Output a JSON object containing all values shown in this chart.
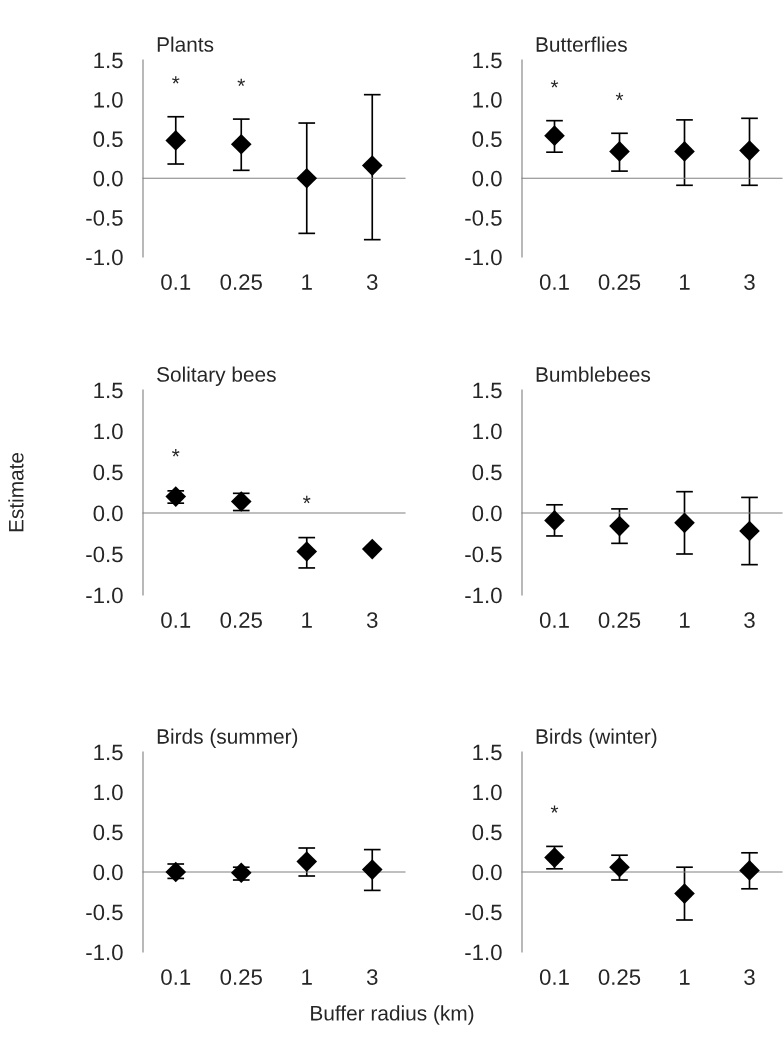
{
  "chart_data": [
    {
      "type": "scatter",
      "title": "Plants",
      "categories": [
        "0.1",
        "0.25",
        "1",
        "3"
      ],
      "values": [
        0.48,
        0.43,
        0.0,
        0.16
      ],
      "errors": [
        [
          0.18,
          0.78
        ],
        [
          0.1,
          0.75
        ],
        [
          -0.7,
          0.7
        ],
        [
          -0.78,
          1.06
        ]
      ],
      "color": "#000000",
      "marker": "diamond",
      "ylim": [
        -1.0,
        1.5
      ],
      "yticks": [
        {
          "value": 1.5,
          "label": "1.5"
        },
        {
          "value": 1.0,
          "label": "1.0"
        },
        {
          "value": 0.5,
          "label": "0.5"
        },
        {
          "value": 0.0,
          "label": "0.0"
        },
        {
          "value": -0.5,
          "label": "-0.5"
        },
        {
          "value": -1.0,
          "label": "-1.0"
        }
      ],
      "value_labels": [
        "*",
        "*",
        null,
        null
      ]
    },
    {
      "type": "scatter",
      "title": "Butterflies",
      "categories": [
        "0.1",
        "0.25",
        "1",
        "3"
      ],
      "values": [
        0.54,
        0.34,
        0.34,
        0.35
      ],
      "errors": [
        [
          0.33,
          0.73
        ],
        [
          0.09,
          0.57
        ],
        [
          -0.09,
          0.74
        ],
        [
          -0.09,
          0.76
        ]
      ],
      "color": "#000000",
      "marker": "diamond",
      "ylim": [
        -1.0,
        1.5
      ],
      "yticks": [
        {
          "value": 1.5,
          "label": "1.5"
        },
        {
          "value": 1.0,
          "label": "1.0"
        },
        {
          "value": 0.5,
          "label": "0.5"
        },
        {
          "value": 0.0,
          "label": "0.0"
        },
        {
          "value": -0.5,
          "label": "-0.5"
        },
        {
          "value": -1.0,
          "label": "-1.0"
        }
      ],
      "value_labels": [
        "*",
        "*",
        null,
        null
      ]
    },
    {
      "type": "scatter",
      "title": "Solitary bees",
      "ylabel": "Estimate",
      "categories": [
        "0.1",
        "0.25",
        "1",
        "3"
      ],
      "values": [
        0.2,
        0.14,
        -0.47,
        -0.44
      ],
      "errors": [
        [
          0.12,
          0.27
        ],
        [
          0.03,
          0.24
        ],
        [
          -0.67,
          -0.3
        ],
        null
      ],
      "color": "#000000",
      "marker": "diamond",
      "ylim": [
        -1.0,
        1.5
      ],
      "yticks": [
        {
          "value": 1.5,
          "label": "1.5"
        },
        {
          "value": 1.0,
          "label": "1.0"
        },
        {
          "value": 0.5,
          "label": "0.5"
        },
        {
          "value": 0.0,
          "label": "0.0"
        },
        {
          "value": -0.5,
          "label": "-0.5"
        },
        {
          "value": -1.0,
          "label": "-1.0"
        }
      ],
      "value_labels": [
        "*",
        null,
        "*",
        null
      ]
    },
    {
      "type": "scatter",
      "title": "Bumblebees",
      "categories": [
        "0.1",
        "0.25",
        "1",
        "3"
      ],
      "values": [
        -0.09,
        -0.16,
        -0.12,
        -0.22
      ],
      "errors": [
        [
          -0.28,
          0.1
        ],
        [
          -0.37,
          0.05
        ],
        [
          -0.5,
          0.26
        ],
        [
          -0.63,
          0.19
        ]
      ],
      "color": "#000000",
      "marker": "diamond",
      "ylim": [
        -1.0,
        1.5
      ],
      "yticks": [
        {
          "value": 1.5,
          "label": "1.5"
        },
        {
          "value": 1.0,
          "label": "1.0"
        },
        {
          "value": 0.5,
          "label": "0.5"
        },
        {
          "value": 0.0,
          "label": "0.0"
        },
        {
          "value": -0.5,
          "label": "-0.5"
        },
        {
          "value": -1.0,
          "label": "-1.0"
        }
      ]
    },
    {
      "type": "scatter",
      "title": "Birds (summer)",
      "xlabel": "Buffer radius (km)",
      "categories": [
        "0.1",
        "0.25",
        "1",
        "3"
      ],
      "values": [
        0.0,
        -0.01,
        0.13,
        0.03
      ],
      "errors": [
        [
          -0.08,
          0.1
        ],
        [
          -0.1,
          0.06
        ],
        [
          -0.05,
          0.3
        ],
        [
          -0.23,
          0.28
        ]
      ],
      "color": "#000000",
      "marker": "diamond",
      "ylim": [
        -1.0,
        1.5
      ],
      "yticks": [
        {
          "value": 1.5,
          "label": "1.5"
        },
        {
          "value": 1.0,
          "label": "1.0"
        },
        {
          "value": 0.5,
          "label": "0.5"
        },
        {
          "value": 0.0,
          "label": "0.0"
        },
        {
          "value": -0.5,
          "label": "-0.5"
        },
        {
          "value": -1.0,
          "label": "-1.0"
        }
      ]
    },
    {
      "type": "scatter",
      "title": "Birds (winter)",
      "categories": [
        "0.1",
        "0.25",
        "1",
        "3"
      ],
      "values": [
        0.18,
        0.06,
        -0.27,
        0.02
      ],
      "errors": [
        [
          0.04,
          0.32
        ],
        [
          -0.1,
          0.21
        ],
        [
          -0.6,
          0.06
        ],
        [
          -0.21,
          0.24
        ]
      ],
      "color": "#000000",
      "marker": "diamond",
      "ylim": [
        -1.0,
        1.5
      ],
      "yticks": [
        {
          "value": 1.5,
          "label": "1.5"
        },
        {
          "value": 1.0,
          "label": "1.0"
        },
        {
          "value": 0.5,
          "label": "0.5"
        },
        {
          "value": 0.0,
          "label": "0.0"
        },
        {
          "value": -0.5,
          "label": "-0.5"
        },
        {
          "value": -1.0,
          "label": "-1.0"
        }
      ],
      "value_labels": [
        "*",
        null,
        null,
        null
      ]
    }
  ]
}
